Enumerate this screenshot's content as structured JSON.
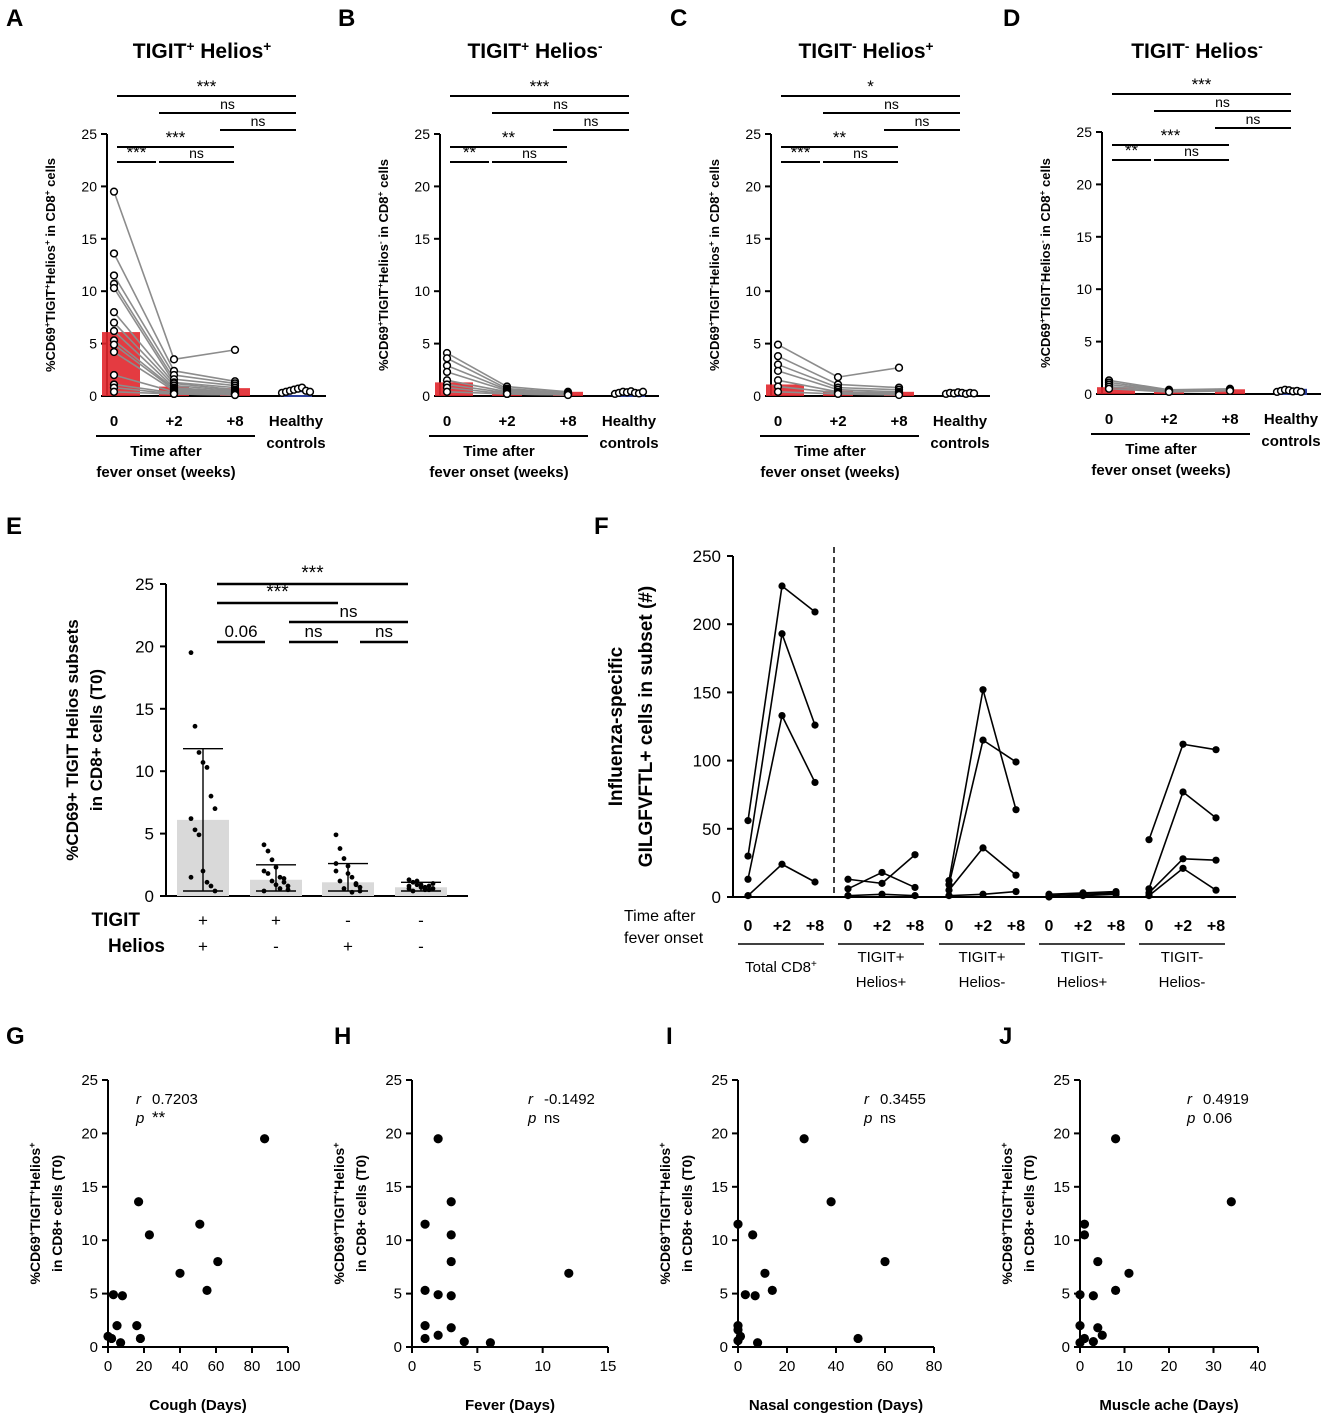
{
  "panels_ad": [
    {
      "letter": "A",
      "title": "TIGIT",
      "title_sup1": "+",
      "title_mid": " Helios",
      "title_sup2": "+",
      "ylabel_parts": [
        "%CD69",
        "+",
        "TIGIT",
        "+",
        "Helios",
        "+",
        " in CD8",
        "+",
        " cells"
      ],
      "bar_values": [
        6.1,
        0.9,
        0.75,
        0.45
      ],
      "patients": [
        [
          19.5,
          3.5,
          4.4
        ],
        [
          13.6,
          2.4,
          1.4
        ],
        [
          11.5,
          2.0,
          1.2
        ],
        [
          10.7,
          1.6,
          1.0
        ],
        [
          10.3,
          1.3,
          0.8
        ],
        [
          8.0,
          1.2,
          0.6
        ],
        [
          7.0,
          1.0,
          0.5
        ],
        [
          6.2,
          0.8,
          0.4
        ],
        [
          5.3,
          0.7,
          0.3
        ],
        [
          4.9,
          0.6,
          0.3
        ],
        [
          4.2,
          0.5,
          0.2
        ],
        [
          2.0,
          0.4,
          0.2
        ],
        [
          1.1,
          0.3,
          0.1
        ],
        [
          0.8,
          0.2,
          0.1
        ],
        [
          0.4,
          0.2,
          0.1
        ]
      ],
      "healthy": [
        0.3,
        0.4,
        0.5,
        0.6,
        0.7,
        0.8,
        0.5,
        0.4
      ],
      "sig": [
        {
          "from": 0,
          "to": 3,
          "label": "***"
        },
        {
          "from": 1,
          "to": 3,
          "label": "ns"
        },
        {
          "from": 2,
          "to": 3,
          "label": "ns"
        },
        {
          "from": 0,
          "to": 2,
          "label": "***"
        },
        {
          "from": 0,
          "to": 1,
          "label": "***"
        },
        {
          "from": 1,
          "to": 2,
          "label": "ns"
        }
      ]
    },
    {
      "letter": "B",
      "title": "TIGIT",
      "title_sup1": "+",
      "title_mid": " Helios",
      "title_sup2": "-",
      "ylabel_parts": [
        "%CD69",
        "+",
        "TIGIT",
        "+",
        "Helios",
        "-",
        " in CD8",
        "+",
        " cells"
      ],
      "bar_values": [
        1.3,
        0.5,
        0.4,
        0.35
      ],
      "patients": [
        [
          4.1,
          0.9,
          0.4
        ],
        [
          3.6,
          0.7,
          0.3
        ],
        [
          2.9,
          0.6,
          0.3
        ],
        [
          2.3,
          0.5,
          0.2
        ],
        [
          1.5,
          0.4,
          0.2
        ],
        [
          1.1,
          0.3,
          0.2
        ],
        [
          0.8,
          0.2,
          0.1
        ],
        [
          0.4,
          0.2,
          0.1
        ]
      ],
      "healthy": [
        0.2,
        0.3,
        0.4,
        0.35,
        0.45,
        0.3,
        0.25,
        0.4
      ],
      "sig": [
        {
          "from": 0,
          "to": 3,
          "label": "***"
        },
        {
          "from": 1,
          "to": 3,
          "label": "ns"
        },
        {
          "from": 2,
          "to": 3,
          "label": "ns"
        },
        {
          "from": 0,
          "to": 2,
          "label": "**"
        },
        {
          "from": 0,
          "to": 1,
          "label": "**"
        },
        {
          "from": 1,
          "to": 2,
          "label": "ns"
        }
      ]
    },
    {
      "letter": "C",
      "title": "TIGIT",
      "title_sup1": "-",
      "title_mid": " Helios",
      "title_sup2": "+",
      "ylabel_parts": [
        "%CD69",
        "+",
        "TIGIT",
        "-",
        "Helios",
        "+",
        " in CD8",
        "+",
        " cells"
      ],
      "bar_values": [
        1.1,
        0.5,
        0.4,
        0.3
      ],
      "patients": [
        [
          4.9,
          1.8,
          2.7
        ],
        [
          3.8,
          1.1,
          0.8
        ],
        [
          3.0,
          0.8,
          0.6
        ],
        [
          2.4,
          0.6,
          0.4
        ],
        [
          1.5,
          0.4,
          0.3
        ],
        [
          0.9,
          0.3,
          0.2
        ],
        [
          0.4,
          0.2,
          0.1
        ]
      ],
      "healthy": [
        0.2,
        0.3,
        0.25,
        0.35,
        0.3,
        0.2,
        0.3,
        0.25
      ],
      "sig": [
        {
          "from": 0,
          "to": 3,
          "label": "*"
        },
        {
          "from": 1,
          "to": 3,
          "label": "ns"
        },
        {
          "from": 2,
          "to": 3,
          "label": "ns"
        },
        {
          "from": 0,
          "to": 2,
          "label": "**"
        },
        {
          "from": 0,
          "to": 1,
          "label": "***"
        },
        {
          "from": 1,
          "to": 2,
          "label": "ns"
        }
      ]
    },
    {
      "letter": "D",
      "title": "TIGIT",
      "title_sup1": "-",
      "title_mid": " Helios",
      "title_sup2": "-",
      "ylabel_parts": [
        "%CD69",
        "+",
        "TIGIT",
        "-",
        "Helios",
        "-",
        " in CD8",
        "+",
        " cells"
      ],
      "bar_values": [
        0.65,
        0.3,
        0.45,
        0.4
      ],
      "patients": [
        [
          1.3,
          0.4,
          0.5
        ],
        [
          1.1,
          0.35,
          0.45
        ],
        [
          0.9,
          0.3,
          0.4
        ],
        [
          0.7,
          0.25,
          0.35
        ],
        [
          0.5,
          0.2,
          0.3
        ]
      ],
      "healthy": [
        0.2,
        0.3,
        0.4,
        0.35,
        0.25,
        0.3,
        0.2
      ],
      "sig": [
        {
          "from": 0,
          "to": 3,
          "label": "***"
        },
        {
          "from": 1,
          "to": 3,
          "label": "ns"
        },
        {
          "from": 2,
          "to": 3,
          "label": "ns"
        },
        {
          "from": 0,
          "to": 2,
          "label": "***"
        },
        {
          "from": 0,
          "to": 1,
          "label": "**"
        },
        {
          "from": 1,
          "to": 2,
          "label": "ns"
        }
      ]
    }
  ],
  "common_ad": {
    "ylim": [
      0,
      25
    ],
    "yticks": [
      "0",
      "5",
      "10",
      "15",
      "20",
      "25"
    ],
    "xticks": [
      "0",
      "+2",
      "+8"
    ],
    "healthy_label": [
      "Healthy",
      "controls"
    ],
    "time_label": [
      "Time after",
      "fever onset (weeks)"
    ],
    "patient_bar_color": "#e1262c",
    "healthy_bar_color": "#2b3f9a",
    "line_color": "#8c8c8c"
  },
  "chart_data": [
    {
      "type": "bar",
      "title": "TIGIT+ Helios+",
      "categories": [
        "0",
        "+2",
        "+8",
        "Healthy controls"
      ],
      "values": [
        6.1,
        0.9,
        0.75,
        0.45
      ],
      "ylabel": "%CD69+TIGIT+Helios+ in CD8+ cells",
      "ylim": [
        0,
        25
      ]
    },
    {
      "type": "bar",
      "title": "TIGIT+ Helios-",
      "categories": [
        "0",
        "+2",
        "+8",
        "Healthy controls"
      ],
      "values": [
        1.3,
        0.5,
        0.4,
        0.35
      ],
      "ylabel": "%CD69+TIGIT+Helios- in CD8+ cells",
      "ylim": [
        0,
        25
      ]
    },
    {
      "type": "bar",
      "title": "TIGIT- Helios+",
      "categories": [
        "0",
        "+2",
        "+8",
        "Healthy controls"
      ],
      "values": [
        1.1,
        0.5,
        0.4,
        0.3
      ],
      "ylabel": "%CD69+TIGIT-Helios+ in CD8+ cells",
      "ylim": [
        0,
        25
      ]
    },
    {
      "type": "bar",
      "title": "TIGIT- Helios-",
      "categories": [
        "0",
        "+2",
        "+8",
        "Healthy controls"
      ],
      "values": [
        0.65,
        0.3,
        0.45,
        0.4
      ],
      "ylabel": "%CD69+TIGIT-Helios- in CD8+ cells",
      "ylim": [
        0,
        25
      ]
    },
    {
      "type": "bar",
      "title": "E",
      "categories": [
        "TIGIT+ Helios+",
        "TIGIT+ Helios-",
        "TIGIT- Helios+",
        "TIGIT- Helios-"
      ],
      "values": [
        6.1,
        1.3,
        1.1,
        0.7
      ],
      "ylabel": "%CD69+ TIGIT Helios subsets in CD8+ cells (T0)",
      "ylim": [
        0,
        25
      ]
    },
    {
      "type": "line",
      "title": "F",
      "ylabel": "Influenza-specific GILGFVFTL+ cells in subset (#)",
      "ylim": [
        0,
        250
      ]
    },
    {
      "type": "scatter",
      "title": "G",
      "xlabel": "Cough (Days)",
      "xlim": [
        0,
        100
      ],
      "ylim": [
        0,
        25
      ]
    },
    {
      "type": "scatter",
      "title": "H",
      "xlabel": "Fever (Days)",
      "xlim": [
        0,
        15
      ],
      "ylim": [
        0,
        25
      ]
    },
    {
      "type": "scatter",
      "title": "I",
      "xlabel": "Nasal congestion (Days)",
      "xlim": [
        0,
        80
      ],
      "ylim": [
        0,
        25
      ]
    },
    {
      "type": "scatter",
      "title": "J",
      "xlabel": "Muscle ache (Days)",
      "xlim": [
        0,
        40
      ],
      "ylim": [
        0,
        25
      ]
    }
  ],
  "panel_e": {
    "letter": "E",
    "ylabel_lines": [
      "%CD69+ TIGIT Helios subsets",
      "in CD8+ cells (T0)"
    ],
    "yticks": [
      "0",
      "5",
      "10",
      "15",
      "20",
      "25"
    ],
    "ylim": [
      0,
      25
    ],
    "means": [
      6.1,
      1.3,
      1.1,
      0.7
    ],
    "sd": [
      5.7,
      1.2,
      1.5,
      0.4
    ],
    "points": [
      [
        19.5,
        13.6,
        11.5,
        10.7,
        10.3,
        8.0,
        7.0,
        6.2,
        5.3,
        4.9,
        2.0,
        1.1,
        0.8,
        0.4,
        1.5
      ],
      [
        4.1,
        3.6,
        2.9,
        2.3,
        1.5,
        1.1,
        0.8,
        0.4,
        1.8,
        1.2,
        0.9,
        0.6,
        1.4,
        0.5,
        2.0
      ],
      [
        4.9,
        3.8,
        3.0,
        2.4,
        1.5,
        0.9,
        0.4,
        2.0,
        1.2,
        0.6,
        1.8,
        0.3,
        1.0,
        0.7,
        2.6
      ],
      [
        1.3,
        1.1,
        0.9,
        0.7,
        0.5,
        0.8,
        1.0,
        0.6,
        0.4,
        1.2,
        0.9,
        0.7,
        0.5,
        0.6,
        0.8
      ]
    ],
    "row1_label": "TIGIT",
    "row2_label": "Helios",
    "row1_signs": [
      "+",
      "+",
      "-",
      "-"
    ],
    "row2_signs": [
      "+",
      "-",
      "+",
      "-"
    ],
    "bar_color": "#d9d9d9",
    "sig": [
      {
        "from": 0,
        "to": 3,
        "label": "***"
      },
      {
        "from": 0,
        "to": 2,
        "label": "***"
      },
      {
        "from": 1,
        "to": 3,
        "label": "ns"
      },
      {
        "from": 0,
        "to": 1,
        "label": "0.06"
      },
      {
        "from": 1,
        "to": 2,
        "label": "ns"
      },
      {
        "from": 2,
        "to": 3,
        "label": "ns"
      }
    ]
  },
  "panel_f": {
    "letter": "F",
    "ylabel_lines": [
      "Influenza-specific",
      "GILGFVFTL+ cells in subset (#)"
    ],
    "yticks": [
      "0",
      "50",
      "100",
      "150",
      "200",
      "250"
    ],
    "ylim": [
      0,
      250
    ],
    "xticks": [
      "0",
      "+2",
      "+8"
    ],
    "time_label": [
      "Time after",
      "fever onset"
    ],
    "groups": [
      {
        "label": [
          "Total CD8+",
          ""
        ],
        "lines": [
          [
            56,
            228,
            209
          ],
          [
            30,
            193,
            126
          ],
          [
            13,
            133,
            84
          ],
          [
            1,
            24,
            11
          ]
        ]
      },
      {
        "label": [
          "TIGIT+",
          "Helios+"
        ],
        "lines": [
          [
            13,
            10,
            31
          ],
          [
            6,
            18,
            7
          ],
          [
            1,
            2,
            1
          ]
        ]
      },
      {
        "label": [
          "TIGIT+",
          "Helios-"
        ],
        "lines": [
          [
            12,
            152,
            64
          ],
          [
            9,
            115,
            99
          ],
          [
            5,
            36,
            16
          ],
          [
            1,
            2,
            4
          ]
        ]
      },
      {
        "label": [
          "TIGIT-",
          "Helios+"
        ],
        "lines": [
          [
            2,
            3,
            4
          ],
          [
            1,
            2,
            3
          ],
          [
            0,
            1,
            2
          ]
        ]
      },
      {
        "label": [
          "TIGIT-",
          "Helios-"
        ],
        "lines": [
          [
            42,
            112,
            108
          ],
          [
            6,
            77,
            58
          ],
          [
            3,
            28,
            27
          ],
          [
            1,
            21,
            5
          ]
        ]
      }
    ]
  },
  "scatter_panels": [
    {
      "letter": "G",
      "xlabel": "Cough (Days)",
      "xticks": [
        "0",
        "20",
        "40",
        "60",
        "80",
        "100"
      ],
      "xlim": [
        0,
        100
      ],
      "r": "0.7203",
      "p": "**",
      "points": [
        [
          87,
          19.5
        ],
        [
          17,
          13.6
        ],
        [
          23,
          10.5
        ],
        [
          51,
          11.5
        ],
        [
          61,
          8.0
        ],
        [
          40,
          6.9
        ],
        [
          55,
          5.3
        ],
        [
          3,
          4.9
        ],
        [
          8,
          4.8
        ],
        [
          5,
          2.0
        ],
        [
          16,
          2.0
        ],
        [
          0,
          1.0
        ],
        [
          2,
          0.8
        ],
        [
          18,
          0.8
        ],
        [
          7,
          0.4
        ]
      ]
    },
    {
      "letter": "H",
      "xlabel": "Fever (Days)",
      "xticks": [
        "0",
        "5",
        "10",
        "15"
      ],
      "xlim": [
        0,
        15
      ],
      "r": "-0.1492",
      "p": "ns",
      "points": [
        [
          2,
          19.5
        ],
        [
          3,
          13.6
        ],
        [
          1,
          11.5
        ],
        [
          3,
          10.5
        ],
        [
          3,
          8.0
        ],
        [
          12,
          6.9
        ],
        [
          1,
          5.3
        ],
        [
          2,
          4.9
        ],
        [
          3,
          4.8
        ],
        [
          1,
          2.0
        ],
        [
          3,
          1.8
        ],
        [
          2,
          1.1
        ],
        [
          1,
          0.8
        ],
        [
          4,
          0.5
        ],
        [
          6,
          0.4
        ]
      ]
    },
    {
      "letter": "I",
      "xlabel": "Nasal congestion (Days)",
      "xticks": [
        "0",
        "20",
        "40",
        "60",
        "80"
      ],
      "xlim": [
        0,
        80
      ],
      "r": "0.3455",
      "p": "ns",
      "points": [
        [
          27,
          19.5
        ],
        [
          38,
          13.6
        ],
        [
          0,
          11.5
        ],
        [
          6,
          10.5
        ],
        [
          60,
          8.0
        ],
        [
          11,
          6.9
        ],
        [
          14,
          5.3
        ],
        [
          3,
          4.9
        ],
        [
          7,
          4.8
        ],
        [
          0,
          2.0
        ],
        [
          0,
          1.6
        ],
        [
          1,
          1.0
        ],
        [
          49,
          0.8
        ],
        [
          0,
          0.6
        ],
        [
          8,
          0.4
        ]
      ]
    },
    {
      "letter": "J",
      "xlabel": "Muscle ache (Days)",
      "xticks": [
        "0",
        "10",
        "20",
        "30",
        "40"
      ],
      "xlim": [
        0,
        40
      ],
      "r": "0.4919",
      "p": "0.06",
      "points": [
        [
          8,
          19.5
        ],
        [
          34,
          13.6
        ],
        [
          1,
          11.5
        ],
        [
          1,
          10.5
        ],
        [
          4,
          8.0
        ],
        [
          11,
          6.9
        ],
        [
          8,
          5.3
        ],
        [
          0,
          4.9
        ],
        [
          3,
          4.8
        ],
        [
          0,
          2.0
        ],
        [
          4,
          1.8
        ],
        [
          5,
          1.1
        ],
        [
          1,
          0.8
        ],
        [
          3,
          0.5
        ],
        [
          0,
          0.4
        ]
      ]
    }
  ],
  "scatter_common": {
    "ylabel_lines": [
      "%CD69+TIGIT+Helios+",
      "in CD8+ cells (T0)"
    ],
    "yticks": [
      "0",
      "5",
      "10",
      "15",
      "20",
      "25"
    ],
    "ylim": [
      0,
      25
    ],
    "r_label": "r",
    "p_label": "p"
  }
}
